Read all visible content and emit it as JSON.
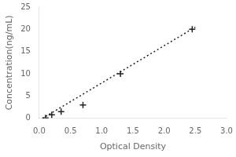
{
  "chart_data": {
    "type": "scatter",
    "xlabel": "Optical Density",
    "ylabel": "Concentration(ng/mL)",
    "xlim": [
      0,
      3
    ],
    "ylim": [
      0,
      25
    ],
    "xticks": [
      {
        "value": 0,
        "label": "0.0"
      },
      0.5,
      {
        "value": 1.0,
        "label": "1.0"
      },
      1.5,
      {
        "value": 2.0,
        "label": "2.0"
      },
      2.5,
      {
        "value": 3.0,
        "label": "3.0"
      }
    ],
    "yticks": [
      0,
      5,
      10,
      15,
      20,
      25
    ],
    "grid": false,
    "series": [
      {
        "type": "line",
        "x": [
          0.05,
          2.5
        ],
        "values": [
          0.0,
          20.5
        ],
        "color": "#222222",
        "line_style": "dotted"
      },
      {
        "type": "scatter",
        "x": [
          0.1,
          0.2,
          0.35,
          0.7,
          1.3,
          2.45
        ],
        "values": [
          0.1,
          0.8,
          1.5,
          3.0,
          10.0,
          20.0
        ],
        "color": "#222222",
        "marker": "+"
      }
    ]
  }
}
